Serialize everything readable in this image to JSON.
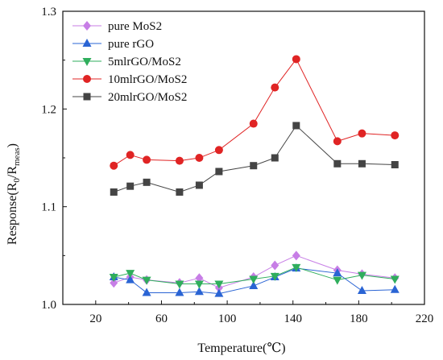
{
  "chart_data": {
    "type": "line",
    "title": "",
    "xlabel": "Temperature(℃)",
    "ylabel_main": "Response(R",
    "ylabel_sub0": "0",
    "ylabel_mid": "/R",
    "ylabel_sub1": "meas",
    "ylabel_end": ")",
    "xlim": [
      0,
      220
    ],
    "ylim": [
      1.0,
      1.3
    ],
    "xticks": [
      "20",
      "60",
      "100",
      "140",
      "180",
      "220"
    ],
    "xtick_values": [
      20,
      60,
      100,
      140,
      180,
      220
    ],
    "yticks": [
      "1.0",
      "1.1",
      "1.2",
      "1.3"
    ],
    "ytick_values": [
      1.0,
      1.1,
      1.2,
      1.3
    ],
    "legend_position": "top-left",
    "series": [
      {
        "name": "pure MoS2",
        "color": "#c77ee6",
        "marker": "diamond",
        "x": [
          31,
          41,
          51,
          71,
          83,
          95,
          116,
          129,
          142,
          167,
          182,
          202
        ],
        "y": [
          1.022,
          1.028,
          1.025,
          1.022,
          1.027,
          1.017,
          1.028,
          1.04,
          1.05,
          1.035,
          1.031,
          1.027
        ]
      },
      {
        "name": "pure rGO",
        "color": "#2a64d4",
        "marker": "triangle-up",
        "x": [
          31,
          41,
          51,
          71,
          83,
          95,
          116,
          129,
          142,
          167,
          182,
          202
        ],
        "y": [
          1.028,
          1.025,
          1.012,
          1.012,
          1.013,
          1.011,
          1.019,
          1.028,
          1.037,
          1.032,
          1.014,
          1.015
        ]
      },
      {
        "name": "5mlrGO/MoS2",
        "color": "#2fae5c",
        "marker": "triangle-down",
        "x": [
          31,
          41,
          51,
          71,
          83,
          95,
          116,
          129,
          142,
          167,
          182,
          202
        ],
        "y": [
          1.028,
          1.032,
          1.025,
          1.021,
          1.021,
          1.021,
          1.026,
          1.029,
          1.038,
          1.025,
          1.03,
          1.026
        ]
      },
      {
        "name": "10mlrGO/MoS2",
        "color": "#e02424",
        "marker": "circle",
        "x": [
          31,
          41,
          51,
          71,
          83,
          95,
          116,
          129,
          142,
          167,
          182,
          202
        ],
        "y": [
          1.142,
          1.153,
          1.148,
          1.147,
          1.15,
          1.158,
          1.185,
          1.222,
          1.251,
          1.167,
          1.175,
          1.173
        ]
      },
      {
        "name": "20mlrGO/MoS2",
        "color": "#444444",
        "marker": "square",
        "x": [
          31,
          41,
          51,
          71,
          83,
          95,
          116,
          129,
          142,
          167,
          182,
          202
        ],
        "y": [
          1.115,
          1.121,
          1.125,
          1.115,
          1.122,
          1.136,
          1.142,
          1.15,
          1.183,
          1.144,
          1.144,
          1.143
        ]
      }
    ]
  }
}
